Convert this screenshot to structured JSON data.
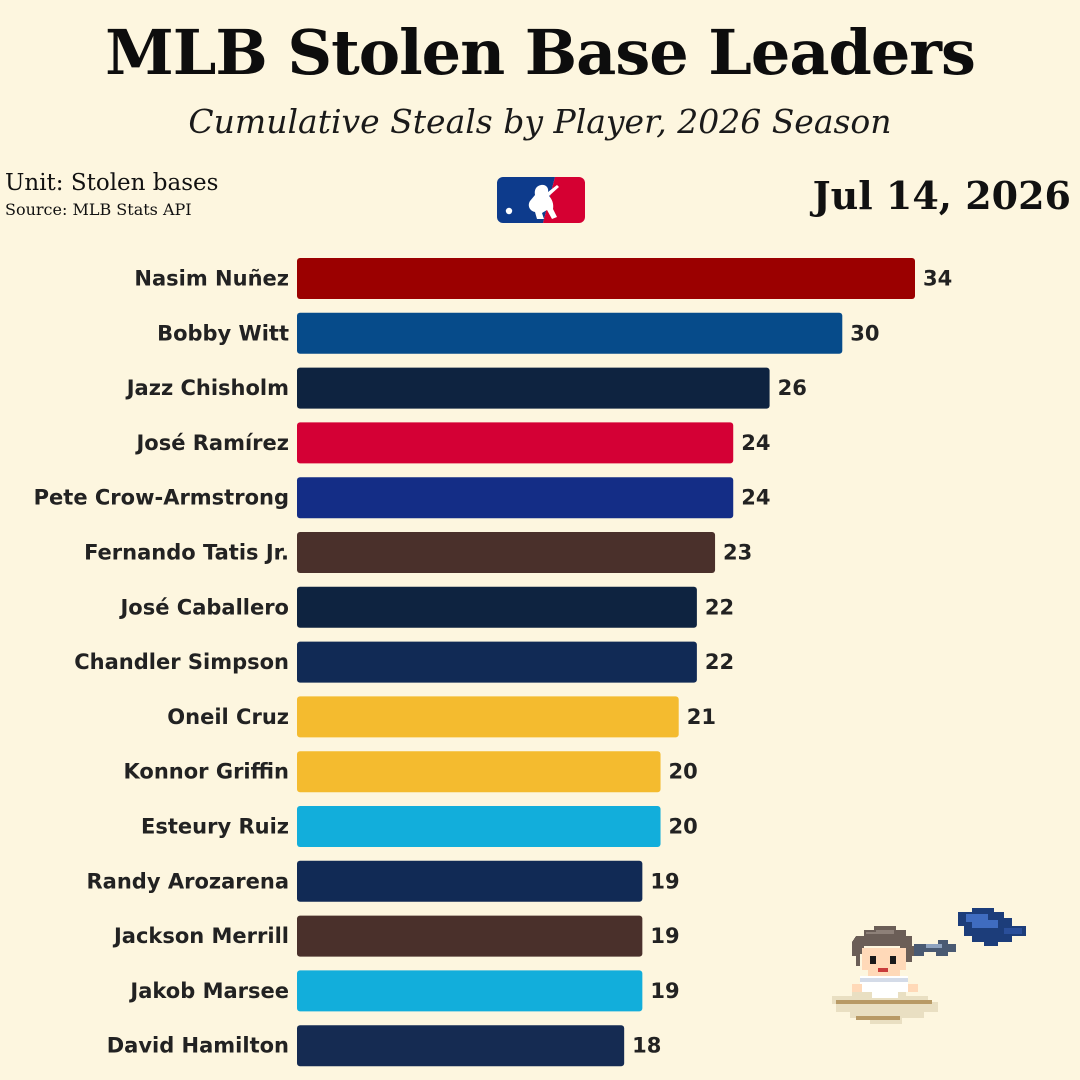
{
  "header": {
    "title": "MLB Stolen Base Leaders",
    "subtitle": "Cumulative Steals by Player, 2026 Season",
    "unit": "Unit: Stolen bases",
    "source": "Source: MLB Stats API",
    "date": "Jul 14, 2026"
  },
  "logo_icon": "mlb-logo-icon",
  "mascot_icon": "pixel-runner-sliding-icon",
  "chart_data": {
    "type": "bar",
    "orientation": "horizontal",
    "title": "MLB Stolen Base Leaders",
    "subtitle": "Cumulative Steals by Player, 2026 Season",
    "xlabel": "",
    "ylabel": "",
    "xlim": [
      0,
      34
    ],
    "grid": false,
    "legend": "none",
    "categories": [
      "Nasim Nuñez",
      "Bobby Witt",
      "Jazz Chisholm",
      "José Ramírez",
      "Pete Crow-Armstrong",
      "Fernando Tatis Jr.",
      "José Caballero",
      "Chandler Simpson",
      "Oneil Cruz",
      "Konnor Griffin",
      "Esteury Ruiz",
      "Randy Arozarena",
      "Jackson Merrill",
      "Jakob Marsee",
      "David Hamilton"
    ],
    "values": [
      34,
      30,
      26,
      24,
      24,
      23,
      22,
      22,
      21,
      20,
      20,
      19,
      19,
      19,
      18
    ],
    "colors": [
      "#9b0000",
      "#064b8a",
      "#0e2340",
      "#d40035",
      "#142d86",
      "#4a302b",
      "#0e2340",
      "#112a55",
      "#f4bb2f",
      "#f4bb2f",
      "#12aedb",
      "#112a55",
      "#4a302b",
      "#12aedb",
      "#152b52"
    ]
  }
}
